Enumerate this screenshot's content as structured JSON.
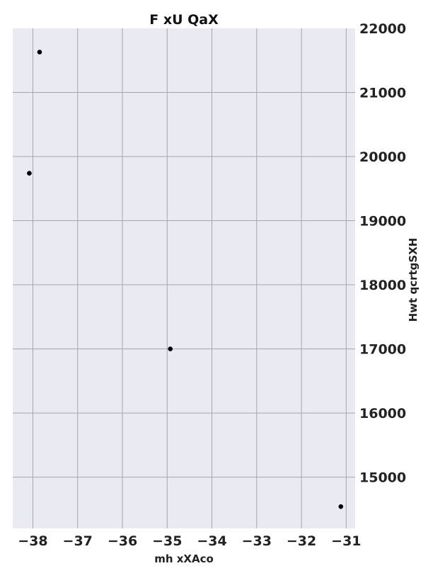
{
  "chart_data": {
    "type": "scatter",
    "title": "F  xU QaX",
    "xlabel": "mh xXAco",
    "ylabel": "Hwt   qcrtgSXH",
    "xlim": [
      -38.45,
      -30.8
    ],
    "ylim": [
      14200,
      22000
    ],
    "xticks": [
      -38,
      -37,
      -36,
      -35,
      -34,
      -33,
      -32,
      -31
    ],
    "xtick_labels": [
      "−38",
      "−37",
      "−36",
      "−35",
      "−34",
      "−33",
      "−32",
      "−31"
    ],
    "yticks": [
      15000,
      16000,
      17000,
      18000,
      19000,
      20000,
      21000,
      22000
    ],
    "ytick_labels": [
      "15000",
      "16000",
      "17000",
      "18000",
      "19000",
      "20000",
      "21000",
      "22000"
    ],
    "grid": true,
    "y_axis_position": "right",
    "background": "#eaeaf2",
    "marker_color": "#000000",
    "points": [
      {
        "x": -37.85,
        "y": 21630
      },
      {
        "x": -38.08,
        "y": 19740
      },
      {
        "x": -34.93,
        "y": 17000
      },
      {
        "x": -31.12,
        "y": 14540
      }
    ]
  }
}
